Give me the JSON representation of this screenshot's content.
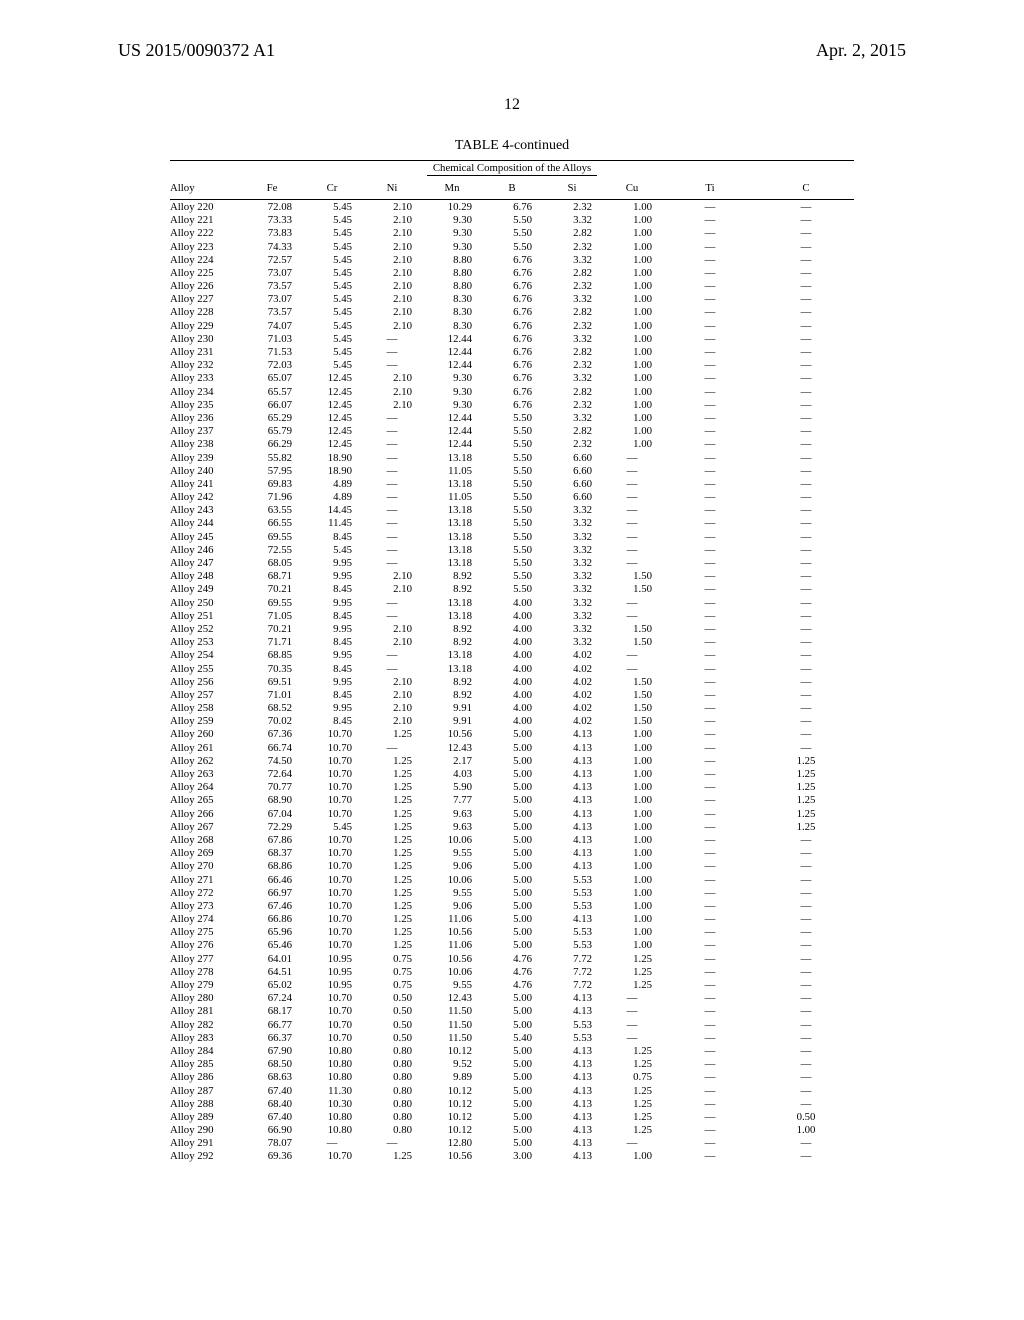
{
  "header": {
    "left": "US 2015/0090372 A1",
    "right": "Apr. 2, 2015",
    "page_number": "12"
  },
  "table": {
    "caption": "TABLE 4-continued",
    "subheading": "Chemical Composition of the Alloys",
    "columns": [
      "Alloy",
      "Fe",
      "Cr",
      "Ni",
      "Mn",
      "B",
      "Si",
      "Cu",
      "Ti",
      "C"
    ],
    "rows": [
      [
        "Alloy 220",
        "72.08",
        "5.45",
        "2.10",
        "10.29",
        "6.76",
        "2.32",
        "1.00",
        "—",
        "—"
      ],
      [
        "Alloy 221",
        "73.33",
        "5.45",
        "2.10",
        "9.30",
        "5.50",
        "3.32",
        "1.00",
        "—",
        "—"
      ],
      [
        "Alloy 222",
        "73.83",
        "5.45",
        "2.10",
        "9.30",
        "5.50",
        "2.82",
        "1.00",
        "—",
        "—"
      ],
      [
        "Alloy 223",
        "74.33",
        "5.45",
        "2.10",
        "9.30",
        "5.50",
        "2.32",
        "1.00",
        "—",
        "—"
      ],
      [
        "Alloy 224",
        "72.57",
        "5.45",
        "2.10",
        "8.80",
        "6.76",
        "3.32",
        "1.00",
        "—",
        "—"
      ],
      [
        "Alloy 225",
        "73.07",
        "5.45",
        "2.10",
        "8.80",
        "6.76",
        "2.82",
        "1.00",
        "—",
        "—"
      ],
      [
        "Alloy 226",
        "73.57",
        "5.45",
        "2.10",
        "8.80",
        "6.76",
        "2.32",
        "1.00",
        "—",
        "—"
      ],
      [
        "Alloy 227",
        "73.07",
        "5.45",
        "2.10",
        "8.30",
        "6.76",
        "3.32",
        "1.00",
        "—",
        "—"
      ],
      [
        "Alloy 228",
        "73.57",
        "5.45",
        "2.10",
        "8.30",
        "6.76",
        "2.82",
        "1.00",
        "—",
        "—"
      ],
      [
        "Alloy 229",
        "74.07",
        "5.45",
        "2.10",
        "8.30",
        "6.76",
        "2.32",
        "1.00",
        "—",
        "—"
      ],
      [
        "Alloy 230",
        "71.03",
        "5.45",
        "—",
        "12.44",
        "6.76",
        "3.32",
        "1.00",
        "—",
        "—"
      ],
      [
        "Alloy 231",
        "71.53",
        "5.45",
        "—",
        "12.44",
        "6.76",
        "2.82",
        "1.00",
        "—",
        "—"
      ],
      [
        "Alloy 232",
        "72.03",
        "5.45",
        "—",
        "12.44",
        "6.76",
        "2.32",
        "1.00",
        "—",
        "—"
      ],
      [
        "Alloy 233",
        "65.07",
        "12.45",
        "2.10",
        "9.30",
        "6.76",
        "3.32",
        "1.00",
        "—",
        "—"
      ],
      [
        "Alloy 234",
        "65.57",
        "12.45",
        "2.10",
        "9.30",
        "6.76",
        "2.82",
        "1.00",
        "—",
        "—"
      ],
      [
        "Alloy 235",
        "66.07",
        "12.45",
        "2.10",
        "9.30",
        "6.76",
        "2.32",
        "1.00",
        "—",
        "—"
      ],
      [
        "Alloy 236",
        "65.29",
        "12.45",
        "—",
        "12.44",
        "5.50",
        "3.32",
        "1.00",
        "—",
        "—"
      ],
      [
        "Alloy 237",
        "65.79",
        "12.45",
        "—",
        "12.44",
        "5.50",
        "2.82",
        "1.00",
        "—",
        "—"
      ],
      [
        "Alloy 238",
        "66.29",
        "12.45",
        "—",
        "12.44",
        "5.50",
        "2.32",
        "1.00",
        "—",
        "—"
      ],
      [
        "Alloy 239",
        "55.82",
        "18.90",
        "—",
        "13.18",
        "5.50",
        "6.60",
        "—",
        "—",
        "—"
      ],
      [
        "Alloy 240",
        "57.95",
        "18.90",
        "—",
        "11.05",
        "5.50",
        "6.60",
        "—",
        "—",
        "—"
      ],
      [
        "Alloy 241",
        "69.83",
        "4.89",
        "—",
        "13.18",
        "5.50",
        "6.60",
        "—",
        "—",
        "—"
      ],
      [
        "Alloy 242",
        "71.96",
        "4.89",
        "—",
        "11.05",
        "5.50",
        "6.60",
        "—",
        "—",
        "—"
      ],
      [
        "Alloy 243",
        "63.55",
        "14.45",
        "—",
        "13.18",
        "5.50",
        "3.32",
        "—",
        "—",
        "—"
      ],
      [
        "Alloy 244",
        "66.55",
        "11.45",
        "—",
        "13.18",
        "5.50",
        "3.32",
        "—",
        "—",
        "—"
      ],
      [
        "Alloy 245",
        "69.55",
        "8.45",
        "—",
        "13.18",
        "5.50",
        "3.32",
        "—",
        "—",
        "—"
      ],
      [
        "Alloy 246",
        "72.55",
        "5.45",
        "—",
        "13.18",
        "5.50",
        "3.32",
        "—",
        "—",
        "—"
      ],
      [
        "Alloy 247",
        "68.05",
        "9.95",
        "—",
        "13.18",
        "5.50",
        "3.32",
        "—",
        "—",
        "—"
      ],
      [
        "Alloy 248",
        "68.71",
        "9.95",
        "2.10",
        "8.92",
        "5.50",
        "3.32",
        "1.50",
        "—",
        "—"
      ],
      [
        "Alloy 249",
        "70.21",
        "8.45",
        "2.10",
        "8.92",
        "5.50",
        "3.32",
        "1.50",
        "—",
        "—"
      ],
      [
        "Alloy 250",
        "69.55",
        "9.95",
        "—",
        "13.18",
        "4.00",
        "3.32",
        "—",
        "—",
        "—"
      ],
      [
        "Alloy 251",
        "71.05",
        "8.45",
        "—",
        "13.18",
        "4.00",
        "3.32",
        "—",
        "—",
        "—"
      ],
      [
        "Alloy 252",
        "70.21",
        "9.95",
        "2.10",
        "8.92",
        "4.00",
        "3.32",
        "1.50",
        "—",
        "—"
      ],
      [
        "Alloy 253",
        "71.71",
        "8.45",
        "2.10",
        "8.92",
        "4.00",
        "3.32",
        "1.50",
        "—",
        "—"
      ],
      [
        "Alloy 254",
        "68.85",
        "9.95",
        "—",
        "13.18",
        "4.00",
        "4.02",
        "—",
        "—",
        "—"
      ],
      [
        "Alloy 255",
        "70.35",
        "8.45",
        "—",
        "13.18",
        "4.00",
        "4.02",
        "—",
        "—",
        "—"
      ],
      [
        "Alloy 256",
        "69.51",
        "9.95",
        "2.10",
        "8.92",
        "4.00",
        "4.02",
        "1.50",
        "—",
        "—"
      ],
      [
        "Alloy 257",
        "71.01",
        "8.45",
        "2.10",
        "8.92",
        "4.00",
        "4.02",
        "1.50",
        "—",
        "—"
      ],
      [
        "Alloy 258",
        "68.52",
        "9.95",
        "2.10",
        "9.91",
        "4.00",
        "4.02",
        "1.50",
        "—",
        "—"
      ],
      [
        "Alloy 259",
        "70.02",
        "8.45",
        "2.10",
        "9.91",
        "4.00",
        "4.02",
        "1.50",
        "—",
        "—"
      ],
      [
        "Alloy 260",
        "67.36",
        "10.70",
        "1.25",
        "10.56",
        "5.00",
        "4.13",
        "1.00",
        "—",
        "—"
      ],
      [
        "Alloy 261",
        "66.74",
        "10.70",
        "—",
        "12.43",
        "5.00",
        "4.13",
        "1.00",
        "—",
        "—"
      ],
      [
        "Alloy 262",
        "74.50",
        "10.70",
        "1.25",
        "2.17",
        "5.00",
        "4.13",
        "1.00",
        "—",
        "1.25"
      ],
      [
        "Alloy 263",
        "72.64",
        "10.70",
        "1.25",
        "4.03",
        "5.00",
        "4.13",
        "1.00",
        "—",
        "1.25"
      ],
      [
        "Alloy 264",
        "70.77",
        "10.70",
        "1.25",
        "5.90",
        "5.00",
        "4.13",
        "1.00",
        "—",
        "1.25"
      ],
      [
        "Alloy 265",
        "68.90",
        "10.70",
        "1.25",
        "7.77",
        "5.00",
        "4.13",
        "1.00",
        "—",
        "1.25"
      ],
      [
        "Alloy 266",
        "67.04",
        "10.70",
        "1.25",
        "9.63",
        "5.00",
        "4.13",
        "1.00",
        "—",
        "1.25"
      ],
      [
        "Alloy 267",
        "72.29",
        "5.45",
        "1.25",
        "9.63",
        "5.00",
        "4.13",
        "1.00",
        "—",
        "1.25"
      ],
      [
        "Alloy 268",
        "67.86",
        "10.70",
        "1.25",
        "10.06",
        "5.00",
        "4.13",
        "1.00",
        "—",
        "—"
      ],
      [
        "Alloy 269",
        "68.37",
        "10.70",
        "1.25",
        "9.55",
        "5.00",
        "4.13",
        "1.00",
        "—",
        "—"
      ],
      [
        "Alloy 270",
        "68.86",
        "10.70",
        "1.25",
        "9.06",
        "5.00",
        "4.13",
        "1.00",
        "—",
        "—"
      ],
      [
        "Alloy 271",
        "66.46",
        "10.70",
        "1.25",
        "10.06",
        "5.00",
        "5.53",
        "1.00",
        "—",
        "—"
      ],
      [
        "Alloy 272",
        "66.97",
        "10.70",
        "1.25",
        "9.55",
        "5.00",
        "5.53",
        "1.00",
        "—",
        "—"
      ],
      [
        "Alloy 273",
        "67.46",
        "10.70",
        "1.25",
        "9.06",
        "5.00",
        "5.53",
        "1.00",
        "—",
        "—"
      ],
      [
        "Alloy 274",
        "66.86",
        "10.70",
        "1.25",
        "11.06",
        "5.00",
        "4.13",
        "1.00",
        "—",
        "—"
      ],
      [
        "Alloy 275",
        "65.96",
        "10.70",
        "1.25",
        "10.56",
        "5.00",
        "5.53",
        "1.00",
        "—",
        "—"
      ],
      [
        "Alloy 276",
        "65.46",
        "10.70",
        "1.25",
        "11.06",
        "5.00",
        "5.53",
        "1.00",
        "—",
        "—"
      ],
      [
        "Alloy 277",
        "64.01",
        "10.95",
        "0.75",
        "10.56",
        "4.76",
        "7.72",
        "1.25",
        "—",
        "—"
      ],
      [
        "Alloy 278",
        "64.51",
        "10.95",
        "0.75",
        "10.06",
        "4.76",
        "7.72",
        "1.25",
        "—",
        "—"
      ],
      [
        "Alloy 279",
        "65.02",
        "10.95",
        "0.75",
        "9.55",
        "4.76",
        "7.72",
        "1.25",
        "—",
        "—"
      ],
      [
        "Alloy 280",
        "67.24",
        "10.70",
        "0.50",
        "12.43",
        "5.00",
        "4.13",
        "—",
        "—",
        "—"
      ],
      [
        "Alloy 281",
        "68.17",
        "10.70",
        "0.50",
        "11.50",
        "5.00",
        "4.13",
        "—",
        "—",
        "—"
      ],
      [
        "Alloy 282",
        "66.77",
        "10.70",
        "0.50",
        "11.50",
        "5.00",
        "5.53",
        "—",
        "—",
        "—"
      ],
      [
        "Alloy 283",
        "66.37",
        "10.70",
        "0.50",
        "11.50",
        "5.40",
        "5.53",
        "—",
        "—",
        "—"
      ],
      [
        "Alloy 284",
        "67.90",
        "10.80",
        "0.80",
        "10.12",
        "5.00",
        "4.13",
        "1.25",
        "—",
        "—"
      ],
      [
        "Alloy 285",
        "68.50",
        "10.80",
        "0.80",
        "9.52",
        "5.00",
        "4.13",
        "1.25",
        "—",
        "—"
      ],
      [
        "Alloy 286",
        "68.63",
        "10.80",
        "0.80",
        "9.89",
        "5.00",
        "4.13",
        "0.75",
        "—",
        "—"
      ],
      [
        "Alloy 287",
        "67.40",
        "11.30",
        "0.80",
        "10.12",
        "5.00",
        "4.13",
        "1.25",
        "—",
        "—"
      ],
      [
        "Alloy 288",
        "68.40",
        "10.30",
        "0.80",
        "10.12",
        "5.00",
        "4.13",
        "1.25",
        "—",
        "—"
      ],
      [
        "Alloy 289",
        "67.40",
        "10.80",
        "0.80",
        "10.12",
        "5.00",
        "4.13",
        "1.25",
        "—",
        "0.50"
      ],
      [
        "Alloy 290",
        "66.90",
        "10.80",
        "0.80",
        "10.12",
        "5.00",
        "4.13",
        "1.25",
        "—",
        "1.00"
      ],
      [
        "Alloy 291",
        "78.07",
        "—",
        "—",
        "12.80",
        "5.00",
        "4.13",
        "—",
        "—",
        "—"
      ],
      [
        "Alloy 292",
        "69.36",
        "10.70",
        "1.25",
        "10.56",
        "3.00",
        "4.13",
        "1.00",
        "—",
        "—"
      ]
    ]
  }
}
